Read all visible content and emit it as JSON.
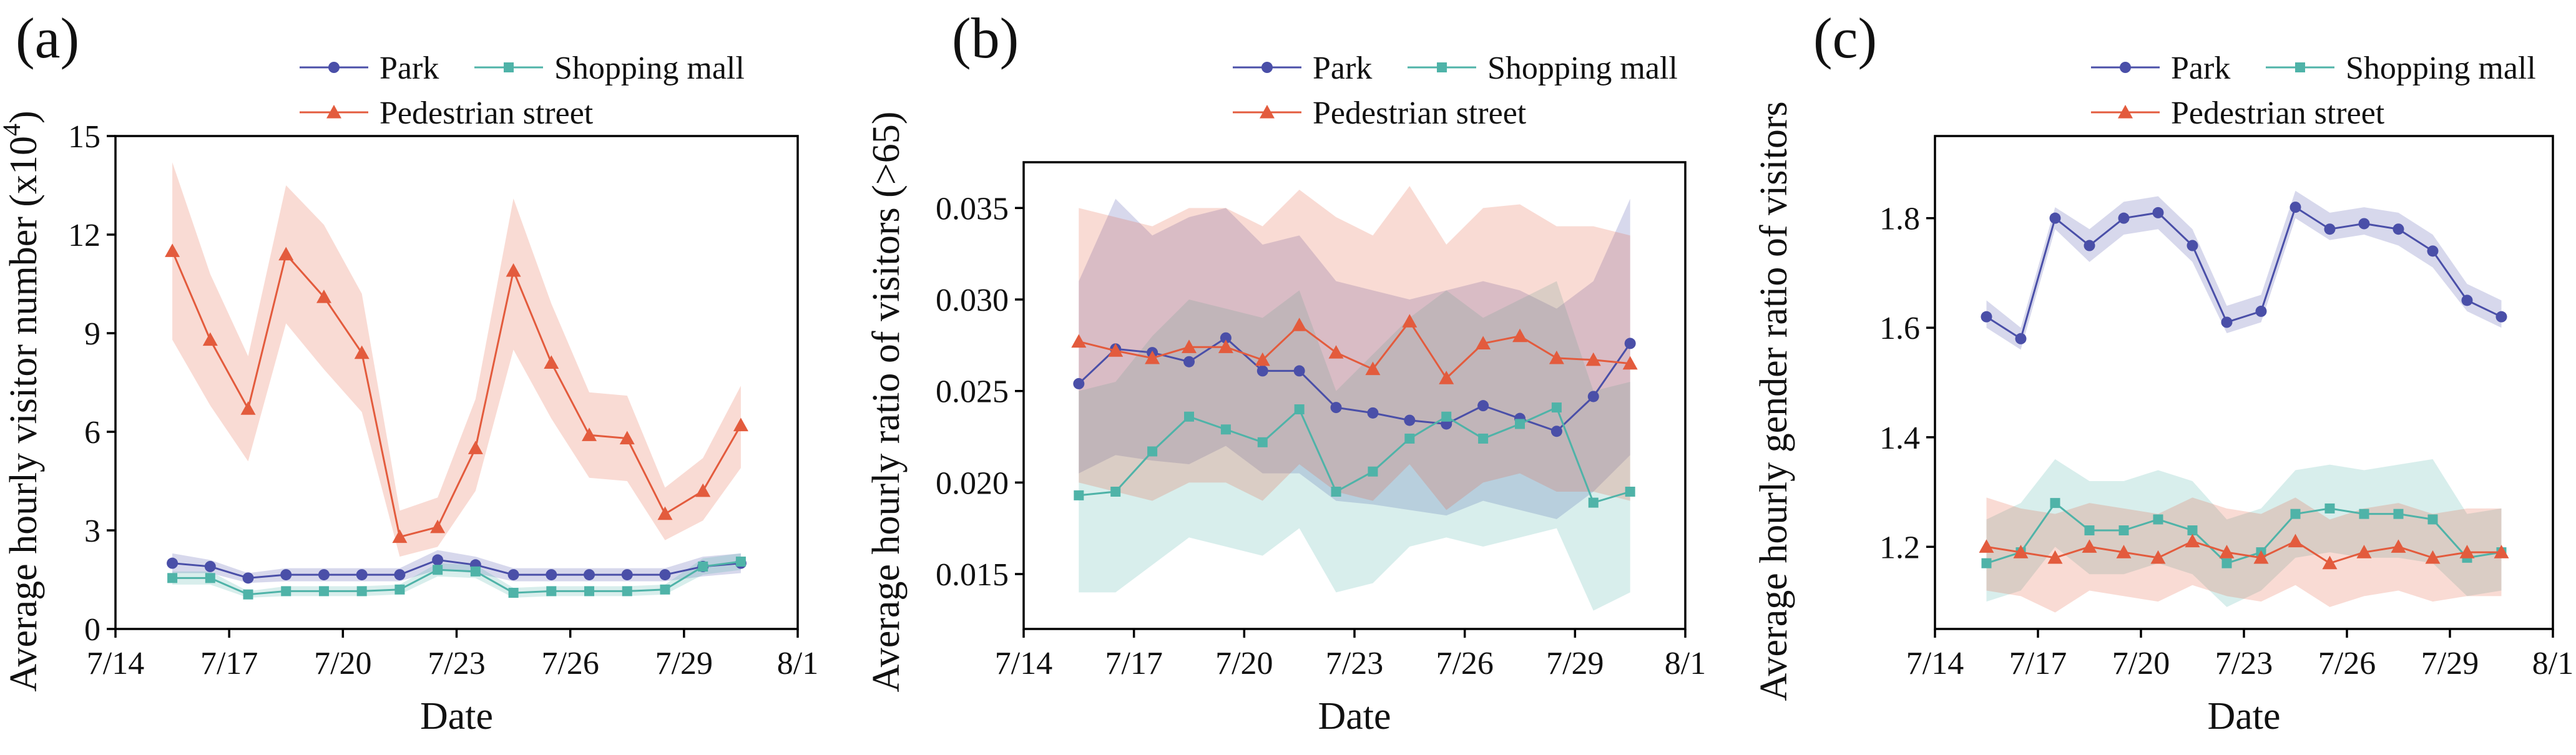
{
  "colors": {
    "park": "#4a4fa8",
    "shopping": "#4fb3a8",
    "pedestrian": "#e35b3d"
  },
  "chart_data": [
    {
      "type": "line",
      "panel_label": "(a)",
      "xlabel": "Date",
      "ylabel_main": "Average hourly visitor number (x10",
      "ylabel_sup": "4",
      "ylabel_end": ")",
      "x_tick_labels": [
        "7/14",
        "7/17",
        "7/20",
        "7/23",
        "7/26",
        "7/29",
        "8/1"
      ],
      "y_tick_labels": [
        "0",
        "3",
        "6",
        "9",
        "12",
        "15"
      ],
      "xlim": [
        14,
        32
      ],
      "ylim": [
        0,
        15
      ],
      "x_ticks": [
        14,
        17,
        20,
        23,
        26,
        29,
        32
      ],
      "y_ticks": [
        0,
        3,
        6,
        9,
        12,
        15
      ],
      "legend_position": "top",
      "x": [
        15.5,
        16.5,
        17.5,
        18.5,
        19.5,
        20.5,
        21.5,
        22.5,
        23.5,
        24.5,
        25.5,
        26.5,
        27.5,
        28.5,
        29.5,
        30.5
      ],
      "series": [
        {
          "name": "Park",
          "key": "park",
          "marker": "circle",
          "values": [
            2.0,
            1.9,
            1.55,
            1.65,
            1.65,
            1.65,
            1.65,
            2.1,
            1.95,
            1.65,
            1.65,
            1.65,
            1.65,
            1.65,
            1.9,
            2.0
          ],
          "band": [
            1.7,
            1.7,
            1.4,
            1.45,
            1.45,
            1.45,
            1.45,
            1.8,
            1.7,
            1.45,
            1.45,
            1.45,
            1.45,
            1.45,
            1.6,
            1.7
          ]
        },
        {
          "name": "Shopping mall",
          "key": "shopping",
          "marker": "square",
          "values": [
            1.55,
            1.55,
            1.05,
            1.15,
            1.15,
            1.15,
            1.2,
            1.8,
            1.75,
            1.1,
            1.15,
            1.15,
            1.15,
            1.2,
            1.9,
            2.05
          ],
          "band": [
            1.35,
            1.35,
            0.95,
            1.0,
            1.0,
            1.0,
            1.05,
            1.6,
            1.55,
            0.95,
            1.0,
            1.0,
            1.0,
            1.05,
            1.65,
            1.8
          ]
        },
        {
          "name": "Pedestrian street",
          "key": "pedestrian",
          "marker": "triangle",
          "values": [
            11.5,
            8.8,
            6.7,
            11.4,
            10.1,
            8.4,
            2.8,
            3.1,
            5.5,
            10.9,
            8.1,
            5.9,
            5.8,
            3.5,
            4.2,
            6.2
          ],
          "band": [
            8.8,
            6.8,
            5.1,
            9.3,
            7.9,
            6.6,
            2.2,
            2.5,
            4.2,
            8.5,
            6.4,
            4.6,
            4.5,
            2.7,
            3.3,
            4.9
          ],
          "band_upper": [
            14.2,
            10.8,
            8.3,
            13.5,
            12.3,
            10.2,
            3.6,
            4.0,
            7.0,
            13.1,
            9.9,
            7.2,
            7.1,
            4.3,
            5.2,
            7.4
          ]
        }
      ],
      "legend": {
        "row1": [
          "Park",
          "Shopping mall"
        ],
        "row2": [
          "Pedestrian street"
        ]
      }
    },
    {
      "type": "line",
      "panel_label": "(b)",
      "xlabel": "Date",
      "ylabel": "Average hourly ratio of visitors (>65)",
      "x_tick_labels": [
        "7/14",
        "7/17",
        "7/20",
        "7/23",
        "7/26",
        "7/29",
        "8/1"
      ],
      "y_tick_labels": [
        "0.015",
        "0.020",
        "0.025",
        "0.030",
        "0.035"
      ],
      "xlim": [
        14,
        32
      ],
      "ylim": [
        0.012,
        0.0375
      ],
      "x_ticks": [
        14,
        17,
        20,
        23,
        26,
        29,
        32
      ],
      "y_ticks": [
        0.015,
        0.02,
        0.025,
        0.03,
        0.035
      ],
      "legend_position": "top",
      "x": [
        15.5,
        16.5,
        17.5,
        18.5,
        19.5,
        20.5,
        21.5,
        22.5,
        23.5,
        24.5,
        25.5,
        26.5,
        27.5,
        28.5,
        29.5,
        30.5
      ],
      "series": [
        {
          "name": "Park",
          "key": "park",
          "marker": "circle",
          "values": [
            0.0254,
            0.0273,
            0.0271,
            0.0266,
            0.0279,
            0.0261,
            0.0261,
            0.0241,
            0.0238,
            0.0234,
            0.0232,
            0.0242,
            0.0235,
            0.0228,
            0.0247,
            0.0276
          ],
          "band_lower": [
            0.0205,
            0.0215,
            0.0212,
            0.021,
            0.022,
            0.0205,
            0.0205,
            0.019,
            0.0188,
            0.0185,
            0.0182,
            0.019,
            0.0185,
            0.018,
            0.0195,
            0.0215
          ],
          "band_upper": [
            0.031,
            0.0355,
            0.0335,
            0.0345,
            0.035,
            0.033,
            0.0335,
            0.031,
            0.0305,
            0.03,
            0.0305,
            0.031,
            0.0305,
            0.0295,
            0.031,
            0.0355
          ]
        },
        {
          "name": "Shopping mall",
          "key": "shopping",
          "marker": "square",
          "values": [
            0.0193,
            0.0195,
            0.0217,
            0.0236,
            0.0229,
            0.0222,
            0.024,
            0.0195,
            0.0206,
            0.0224,
            0.0236,
            0.0224,
            0.0232,
            0.0241,
            0.0189,
            0.0195
          ],
          "band_lower": [
            0.014,
            0.014,
            0.0155,
            0.017,
            0.0165,
            0.016,
            0.0175,
            0.014,
            0.0145,
            0.0165,
            0.017,
            0.0165,
            0.017,
            0.0175,
            0.013,
            0.014
          ],
          "band_upper": [
            0.025,
            0.0255,
            0.028,
            0.03,
            0.0295,
            0.029,
            0.0305,
            0.025,
            0.027,
            0.029,
            0.0305,
            0.029,
            0.03,
            0.031,
            0.025,
            0.0255
          ]
        },
        {
          "name": "Pedestrian street",
          "key": "pedestrian",
          "marker": "triangle",
          "values": [
            0.0277,
            0.0272,
            0.0268,
            0.0274,
            0.0274,
            0.0267,
            0.0286,
            0.0271,
            0.0262,
            0.0288,
            0.0257,
            0.0276,
            0.028,
            0.0268,
            0.0267,
            0.0265
          ],
          "band_lower": [
            0.02,
            0.0195,
            0.019,
            0.02,
            0.02,
            0.019,
            0.021,
            0.0195,
            0.019,
            0.021,
            0.0185,
            0.02,
            0.0205,
            0.0195,
            0.0195,
            0.019
          ],
          "band_upper": [
            0.035,
            0.0345,
            0.034,
            0.035,
            0.035,
            0.034,
            0.036,
            0.0345,
            0.0335,
            0.0362,
            0.033,
            0.035,
            0.0352,
            0.034,
            0.034,
            0.0335
          ]
        }
      ],
      "legend": {
        "row1": [
          "Park",
          "Shopping mall"
        ],
        "row2": [
          "Pedestrian street"
        ]
      }
    },
    {
      "type": "line",
      "panel_label": "(c)",
      "xlabel": "Date",
      "ylabel": "Average hourly gender ratio of visitors",
      "x_tick_labels": [
        "7/14",
        "7/17",
        "7/20",
        "7/23",
        "7/26",
        "7/29",
        "8/1"
      ],
      "y_tick_labels": [
        "1.2",
        "1.4",
        "1.6",
        "1.8"
      ],
      "xlim": [
        14,
        32
      ],
      "ylim": [
        1.05,
        1.95
      ],
      "x_ticks": [
        14,
        17,
        20,
        23,
        26,
        29,
        32
      ],
      "y_ticks": [
        1.2,
        1.4,
        1.6,
        1.8
      ],
      "legend_position": "top",
      "x": [
        15.5,
        16.5,
        17.5,
        18.5,
        19.5,
        20.5,
        21.5,
        22.5,
        23.5,
        24.5,
        25.5,
        26.5,
        27.5,
        28.5,
        29.5,
        30.5
      ],
      "series": [
        {
          "name": "Park",
          "key": "park",
          "marker": "circle",
          "values": [
            1.62,
            1.58,
            1.8,
            1.75,
            1.8,
            1.81,
            1.75,
            1.61,
            1.63,
            1.82,
            1.78,
            1.79,
            1.78,
            1.74,
            1.65,
            1.62
          ],
          "band_lower": [
            1.6,
            1.56,
            1.78,
            1.72,
            1.77,
            1.78,
            1.72,
            1.59,
            1.61,
            1.8,
            1.76,
            1.77,
            1.75,
            1.71,
            1.63,
            1.6
          ],
          "band_upper": [
            1.65,
            1.6,
            1.82,
            1.78,
            1.83,
            1.84,
            1.78,
            1.64,
            1.66,
            1.85,
            1.81,
            1.82,
            1.81,
            1.77,
            1.68,
            1.65
          ]
        },
        {
          "name": "Shopping mall",
          "key": "shopping",
          "marker": "square",
          "values": [
            1.17,
            1.19,
            1.28,
            1.23,
            1.23,
            1.25,
            1.23,
            1.17,
            1.19,
            1.26,
            1.27,
            1.26,
            1.26,
            1.25,
            1.18,
            1.19
          ],
          "band_lower": [
            1.1,
            1.12,
            1.2,
            1.15,
            1.15,
            1.17,
            1.15,
            1.09,
            1.12,
            1.18,
            1.19,
            1.18,
            1.18,
            1.17,
            1.11,
            1.12
          ],
          "band_upper": [
            1.25,
            1.28,
            1.36,
            1.32,
            1.32,
            1.34,
            1.32,
            1.25,
            1.27,
            1.34,
            1.35,
            1.34,
            1.35,
            1.36,
            1.26,
            1.27
          ]
        },
        {
          "name": "Pedestrian street",
          "key": "pedestrian",
          "marker": "triangle",
          "values": [
            1.2,
            1.19,
            1.18,
            1.2,
            1.19,
            1.18,
            1.21,
            1.19,
            1.18,
            1.21,
            1.17,
            1.19,
            1.2,
            1.18,
            1.19,
            1.19
          ],
          "band_lower": [
            1.12,
            1.11,
            1.08,
            1.12,
            1.11,
            1.1,
            1.13,
            1.11,
            1.1,
            1.13,
            1.09,
            1.11,
            1.12,
            1.1,
            1.11,
            1.11
          ],
          "band_upper": [
            1.29,
            1.27,
            1.26,
            1.28,
            1.27,
            1.26,
            1.29,
            1.27,
            1.26,
            1.29,
            1.25,
            1.27,
            1.28,
            1.26,
            1.27,
            1.27
          ]
        }
      ],
      "legend": {
        "row1": [
          "Park",
          "Shopping mall"
        ],
        "row2": [
          "Pedestrian street"
        ]
      }
    }
  ]
}
